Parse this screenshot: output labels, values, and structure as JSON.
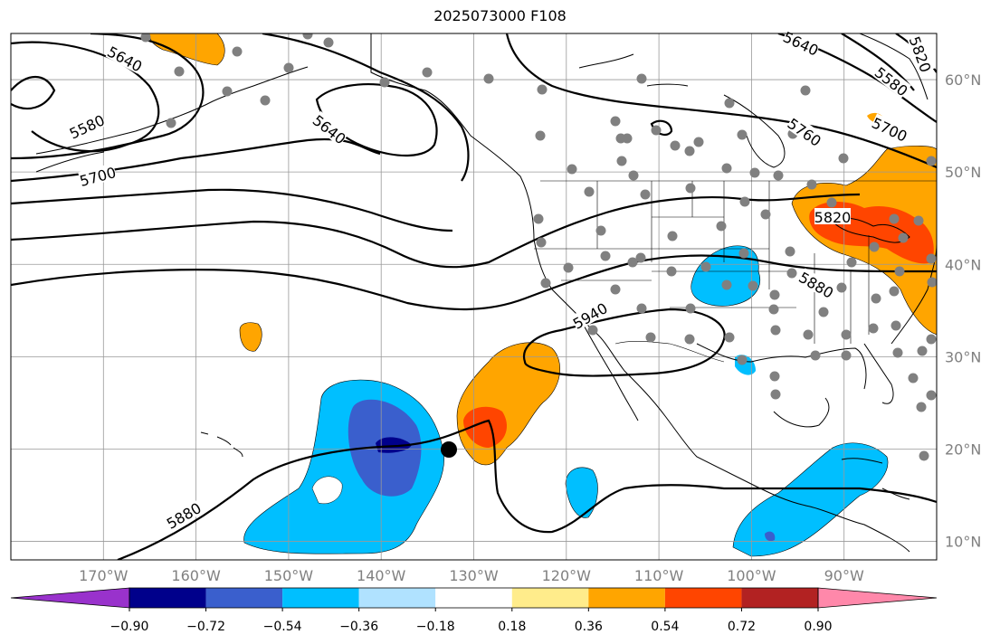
{
  "title": "2025073000 F108",
  "map": {
    "lon_range": [
      -180,
      -80
    ],
    "lat_range": [
      8,
      65
    ],
    "lon_ticks": [
      {
        "value": -170,
        "label": "170°W"
      },
      {
        "value": -160,
        "label": "160°W"
      },
      {
        "value": -150,
        "label": "150°W"
      },
      {
        "value": -140,
        "label": "140°W"
      },
      {
        "value": -130,
        "label": "130°W"
      },
      {
        "value": -120,
        "label": "120°W"
      },
      {
        "value": -110,
        "label": "110°W"
      },
      {
        "value": -100,
        "label": "100°W"
      },
      {
        "value": -90,
        "label": "90°W"
      }
    ],
    "lat_ticks": [
      {
        "value": 10,
        "label": "10°N"
      },
      {
        "value": 20,
        "label": "20°N"
      },
      {
        "value": 30,
        "label": "30°N"
      },
      {
        "value": 40,
        "label": "40°N"
      },
      {
        "value": 50,
        "label": "50°N"
      },
      {
        "value": 60,
        "label": "60°N"
      }
    ],
    "contour_labels": [
      "5640",
      "5580",
      "5640",
      "5700",
      "5760",
      "5700",
      "5580",
      "5640",
      "5820",
      "5820",
      "5880",
      "5940",
      "5880"
    ]
  },
  "colorbar": {
    "colors": [
      "#9932cc",
      "#00008b",
      "#3a5fcd",
      "#00bfff",
      "#b0e2ff",
      "#ffffff",
      "#ffec8b",
      "#ffa500",
      "#ff4500",
      "#b22222",
      "#ff88aa"
    ],
    "labels": [
      "−0.90",
      "−0.72",
      "−0.54",
      "−0.36",
      "−0.18",
      "0.18",
      "0.36",
      "0.54",
      "0.72",
      "0.90"
    ]
  }
}
